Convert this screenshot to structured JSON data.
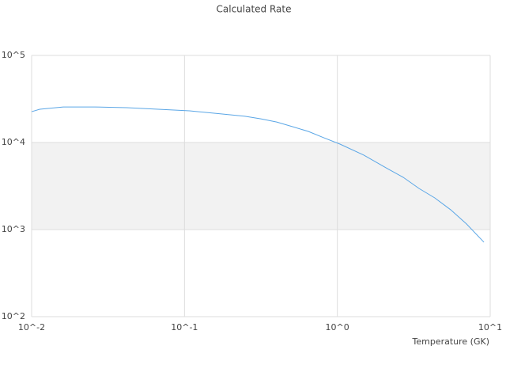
{
  "chart_data": {
    "type": "line",
    "title": "Calculated Rate",
    "x_label": "Temperature (GK)",
    "x": [
      0.01,
      0.0113,
      0.0161,
      0.026,
      0.0418,
      0.0673,
      0.108,
      0.174,
      0.249,
      0.316,
      0.401,
      0.509,
      0.646,
      0.82,
      1.04,
      1.49,
      2.13,
      2.7,
      3.42,
      4.34,
      5.51,
      7.0,
      9.1
    ],
    "series": [
      {
        "color": "#5aa6e6",
        "values": [
          22600,
          24100,
          25600,
          25600,
          25100,
          24100,
          23100,
          21300,
          20000,
          18700,
          17200,
          15200,
          13400,
          11300,
          9590,
          7160,
          5010,
          3980,
          2970,
          2310,
          1690,
          1160,
          716
        ]
      }
    ],
    "xlim": [
      0.01,
      10
    ],
    "ylim": [
      100,
      100000
    ],
    "log_x": true,
    "log_y": true,
    "xticks": [
      {
        "value": 0.01,
        "label": "10^-2"
      },
      {
        "value": 0.1,
        "label": "10^-1"
      },
      {
        "value": 1,
        "label": "10^0"
      },
      {
        "value": 10,
        "label": "10^1"
      }
    ],
    "yticks": [
      {
        "value": 100,
        "label": "10^2"
      },
      {
        "value": 1000,
        "label": "10^3"
      },
      {
        "value": 10000,
        "label": "10^4"
      },
      {
        "value": 100000,
        "label": "10^5"
      }
    ],
    "grid": true,
    "band_color": "#f2f2f2"
  }
}
